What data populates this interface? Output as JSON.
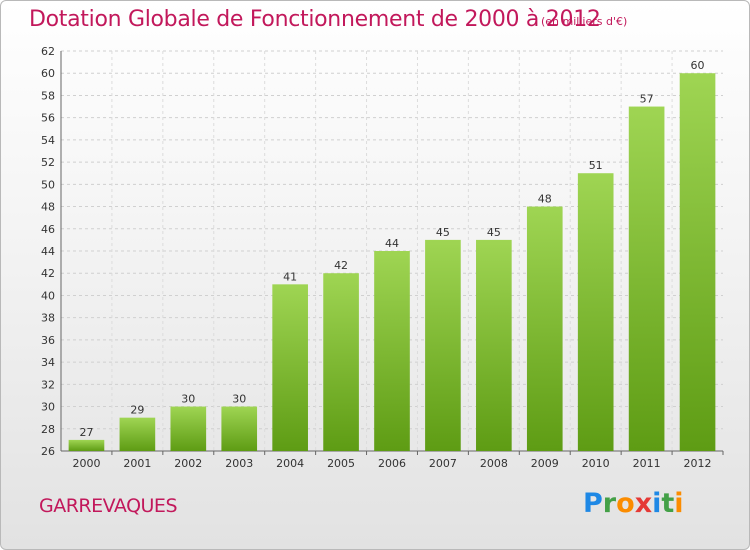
{
  "header": {
    "title": "Dotation Globale de Fonctionnement de 2000 à 2012",
    "subtitle": "(en milliers d'€)"
  },
  "footer": {
    "commune": "GARREVAQUES",
    "brand_letters": [
      "P",
      "r",
      "o",
      "x",
      "i",
      "t",
      "i"
    ],
    "brand_colors": [
      "#1e88e5",
      "#43a047",
      "#fb8c00",
      "#e53935",
      "#1e88e5",
      "#43a047",
      "#fb8c00"
    ]
  },
  "colors": {
    "bar_top": "#9fd553",
    "bar_bottom": "#5e9c14",
    "title": "#c2185b"
  },
  "chart_data": {
    "type": "bar",
    "title": "Dotation Globale de Fonctionnement de 2000 à 2012",
    "subtitle": "(en milliers d'€)",
    "categories": [
      "2000",
      "2001",
      "2002",
      "2003",
      "2004",
      "2005",
      "2006",
      "2007",
      "2008",
      "2009",
      "2010",
      "2011",
      "2012"
    ],
    "values": [
      27,
      29,
      30,
      30,
      41,
      42,
      44,
      45,
      45,
      48,
      51,
      57,
      60
    ],
    "ylim": [
      26,
      62
    ],
    "yticks": [
      26,
      28,
      30,
      32,
      34,
      36,
      38,
      40,
      42,
      44,
      46,
      48,
      50,
      52,
      54,
      56,
      58,
      60,
      62
    ],
    "grid": true,
    "xlabel": "",
    "ylabel": ""
  }
}
